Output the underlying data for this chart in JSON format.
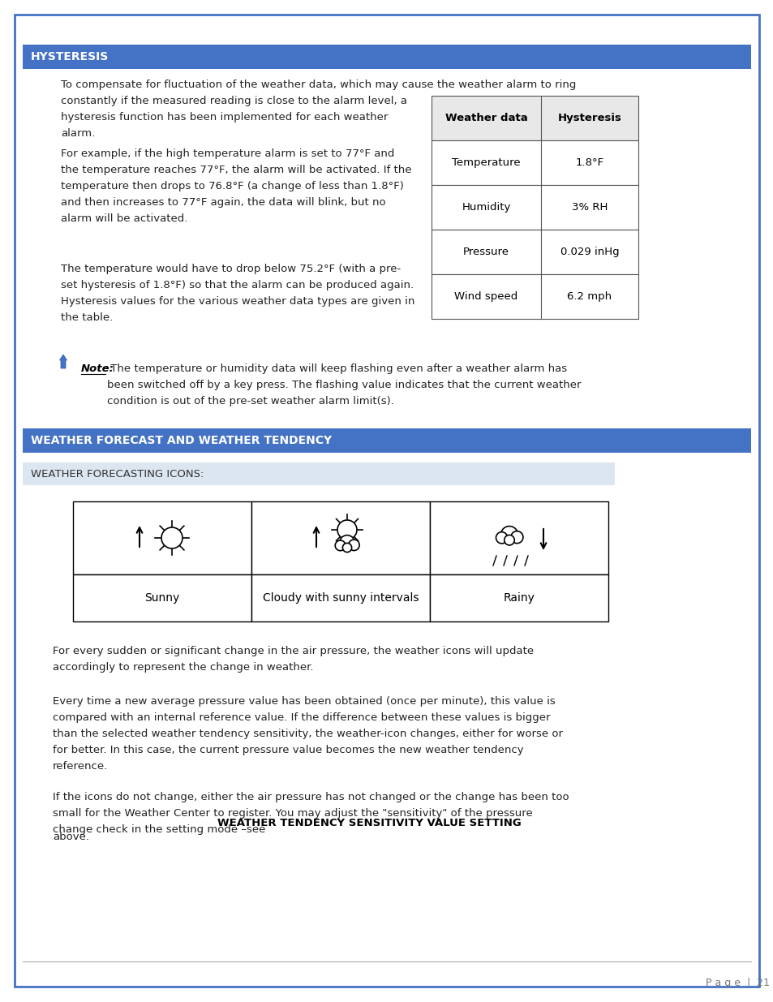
{
  "page_bg": "#ffffff",
  "border_color": "#4472c4",
  "header_bg": "#4472c4",
  "header_text_color": "#ffffff",
  "subheader_bg": "#dce6f1",
  "subheader_text_color": "#333333",
  "body_text_color": "#222222",
  "table_border": "#555555",
  "table_header_bg": "#e8e8e8",
  "section1_title": "HYSTERESIS",
  "note_label": "Note:",
  "note_body": " The temperature or humidity data will keep flashing even after a weather alarm has\nbeen switched off by a key press. The flashing value indicates that the current weather\ncondition is out of the pre-set weather alarm limit(s).",
  "table_headers": [
    "Weather data",
    "Hysteresis"
  ],
  "table_rows": [
    [
      "Temperature",
      "1.8°F"
    ],
    [
      "Humidity",
      "3% RH"
    ],
    [
      "Pressure",
      "0.029 inHg"
    ],
    [
      "Wind speed",
      "6.2 mph"
    ]
  ],
  "section2_title": "WEATHER FORECAST AND WEATHER TENDENCY",
  "section2_subheader": "WEATHER FORECASTING ICONS:",
  "weather_labels": [
    "Sunny",
    "Cloudy with sunny intervals",
    "Rainy"
  ],
  "body_para1": "For every sudden or significant change in the air pressure, the weather icons will update\naccordingly to represent the change in weather.",
  "body_para2": "Every time a new average pressure value has been obtained (once per minute), this value is\ncompared with an internal reference value. If the difference between these values is bigger\nthan the selected weather tendency sensitivity, the weather-icon changes, either for worse or\nfor better. In this case, the current pressure value becomes the new weather tendency\nreference.",
  "body_para3_pre": "If the icons do not change, either the air pressure has not changed or the change has been too\nsmall for the Weather Center to register. You may adjust the \"sensitivity\" of the pressure\nchange check in the setting mode –see ",
  "body_para3_bold": "WEATHER TENDENCY SENSITIVITY VALUE SETTING",
  "body_para3_end": "above.",
  "page_num": "P a g e  |  21"
}
